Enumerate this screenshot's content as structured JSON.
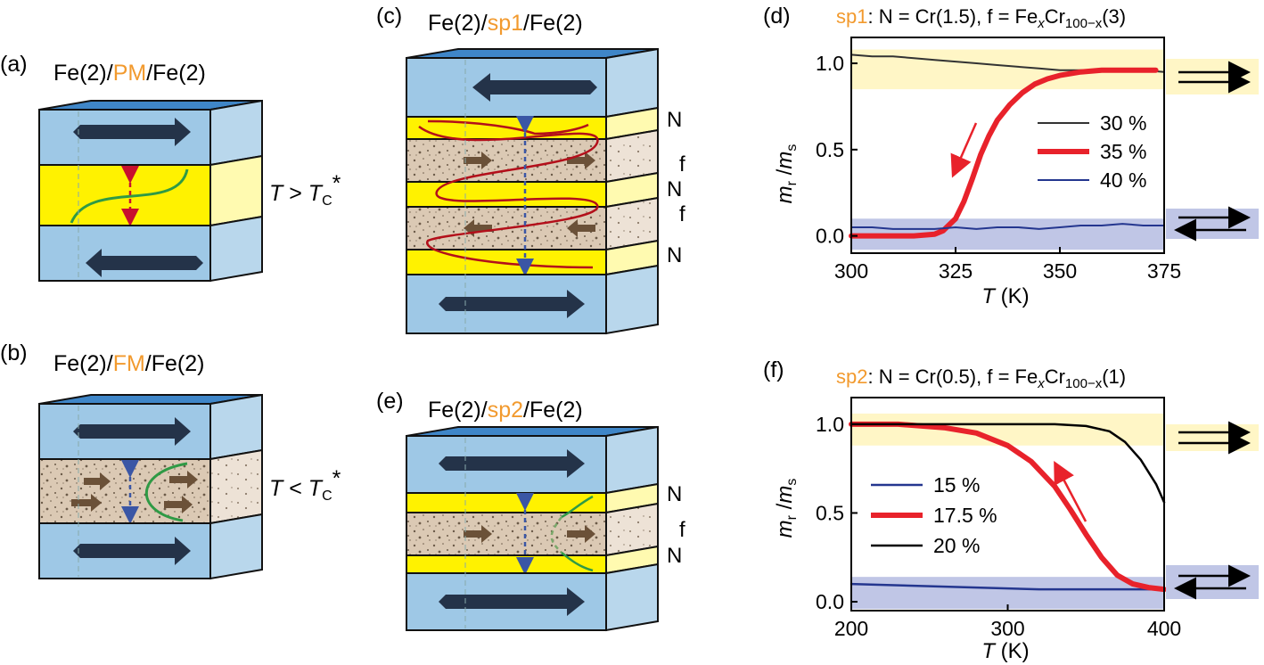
{
  "colors": {
    "fe_side": "#b9d7ec",
    "fe_face": "#9ec8e6",
    "fe_top": "#3f86c8",
    "nonmag": "#fff200",
    "ferro": "#dbc9b4",
    "arrow": "#243349",
    "accent": "#f29a2e",
    "red": "#e8222b",
    "grey": "#333333",
    "blue": "#24368f",
    "yellow_band": "#fff6c6",
    "blue_band": "#c0c6e6",
    "green": "#2f9a45"
  },
  "panels": {
    "a": {
      "label": "(a)",
      "title_pre": "Fe(2)/",
      "title_hl": "PM",
      "title_post": "/Fe(2)",
      "cond_var": "T",
      "cond_op": " > ",
      "cond_tc": "T",
      "cond_sub": "C",
      "cond_star": "*"
    },
    "b": {
      "label": "(b)",
      "title_pre": "Fe(2)/",
      "title_hl": "FM",
      "title_post": "/Fe(2)",
      "cond_var": "T",
      "cond_op": " < ",
      "cond_tc": "T",
      "cond_sub": "C",
      "cond_star": "*"
    },
    "c": {
      "label": "(c)",
      "title_pre": "Fe(2)/",
      "title_hl": "sp1",
      "title_post": "/Fe(2)",
      "layer_labels": [
        "N",
        "f",
        "N",
        "f",
        "N"
      ]
    },
    "e": {
      "label": "(e)",
      "title_pre": "Fe(2)/",
      "title_hl": "sp2",
      "title_post": "/Fe(2)",
      "layer_labels": [
        "N",
        "f",
        "N"
      ]
    }
  },
  "chart_data": [
    {
      "id": "d",
      "type": "line",
      "panel_label": "(d)",
      "title_hl": "sp1",
      "title_main": ": N = Cr(1.5), f = Fe",
      "title_x": "x",
      "title_cr": "Cr",
      "title_sub": "100−x",
      "title_end": "(3)",
      "ylabel_m": "m",
      "ylabel_r": "r",
      "ylabel_sep": " /",
      "ylabel_s": "s",
      "xlabel_var": "T",
      "xlabel_unit": " (K)",
      "xlim": [
        300,
        375
      ],
      "ylim": [
        -0.1,
        1.15
      ],
      "xticks": [
        300,
        325,
        350,
        375
      ],
      "xtick_labels": [
        "300",
        "325",
        "350",
        "375"
      ],
      "yticks": [
        0.0,
        0.5,
        1.0
      ],
      "ytick_labels": [
        "0.0",
        "0.5",
        "1.0"
      ],
      "bands": [
        {
          "from": 0.85,
          "to": 1.08,
          "color": "#fff6c6"
        },
        {
          "from": -0.08,
          "to": 0.1,
          "color": "#c0c6e6"
        }
      ],
      "legend_position": "center-right",
      "series": [
        {
          "name": "30 %",
          "color": "#333333",
          "width": 2,
          "x": [
            300,
            305,
            310,
            315,
            320,
            325,
            330,
            335,
            340,
            345,
            350,
            355,
            360,
            365,
            370,
            375
          ],
          "values": [
            1.05,
            1.04,
            1.04,
            1.03,
            1.02,
            1.01,
            1.0,
            0.99,
            0.98,
            0.97,
            0.96,
            0.96,
            0.96,
            0.96,
            0.96,
            0.95
          ]
        },
        {
          "name": "35 %",
          "color": "#e8222b",
          "width": 6,
          "x": [
            300,
            305,
            310,
            315,
            320,
            322,
            325,
            327,
            329,
            331,
            333,
            335,
            338,
            341,
            344,
            347,
            350,
            355,
            360,
            365,
            370,
            373
          ],
          "values": [
            0.0,
            0.0,
            0.0,
            0.0,
            0.01,
            0.03,
            0.1,
            0.2,
            0.33,
            0.47,
            0.58,
            0.67,
            0.76,
            0.83,
            0.88,
            0.91,
            0.93,
            0.95,
            0.96,
            0.96,
            0.96,
            0.96
          ]
        },
        {
          "name": "40 %",
          "color": "#24368f",
          "width": 2,
          "x": [
            300,
            305,
            310,
            315,
            320,
            325,
            330,
            335,
            340,
            345,
            350,
            355,
            360,
            365,
            370,
            375
          ],
          "values": [
            0.05,
            0.05,
            0.04,
            0.04,
            0.04,
            0.05,
            0.04,
            0.05,
            0.05,
            0.04,
            0.05,
            0.06,
            0.06,
            0.07,
            0.06,
            0.06
          ]
        }
      ],
      "annotation_arrow": "cooling arrow along 35 % curve"
    },
    {
      "id": "f",
      "type": "line",
      "panel_label": "(f)",
      "title_hl": "sp2",
      "title_main": ": N = Cr(0.5), f = Fe",
      "title_x": "x",
      "title_cr": "Cr",
      "title_sub": "100−x",
      "title_end": "(1)",
      "ylabel_m": "m",
      "ylabel_r": "r",
      "ylabel_sep": " /",
      "ylabel_s": "s",
      "xlabel_var": "T",
      "xlabel_unit": " (K)",
      "xlim": [
        200,
        400
      ],
      "ylim": [
        -0.05,
        1.15
      ],
      "xticks": [
        200,
        300,
        400
      ],
      "xtick_labels": [
        "200",
        "300",
        "400"
      ],
      "yticks": [
        0.0,
        0.5,
        1.0
      ],
      "ytick_labels": [
        "0.0",
        "0.5",
        "1.0"
      ],
      "bands": [
        {
          "from": 0.88,
          "to": 1.06,
          "color": "#fff6c6"
        },
        {
          "from": -0.04,
          "to": 0.14,
          "color": "#c0c6e6"
        }
      ],
      "legend_position": "left",
      "series": [
        {
          "name": "15 %",
          "color": "#24368f",
          "width": 2.5,
          "x": [
            200,
            240,
            280,
            320,
            360,
            400
          ],
          "values": [
            0.1,
            0.09,
            0.08,
            0.07,
            0.07,
            0.07
          ]
        },
        {
          "name": "17.5 %",
          "color": "#e8222b",
          "width": 6,
          "x": [
            200,
            230,
            260,
            280,
            300,
            315,
            330,
            340,
            350,
            360,
            370,
            380,
            390,
            400
          ],
          "values": [
            1.0,
            1.0,
            0.98,
            0.95,
            0.88,
            0.79,
            0.65,
            0.52,
            0.38,
            0.25,
            0.15,
            0.1,
            0.08,
            0.07
          ]
        },
        {
          "name": "20 %",
          "color": "#000000",
          "width": 2.5,
          "x": [
            200,
            250,
            300,
            330,
            350,
            365,
            375,
            385,
            395,
            400
          ],
          "values": [
            1.0,
            1.0,
            1.0,
            1.0,
            0.99,
            0.96,
            0.9,
            0.8,
            0.66,
            0.56
          ]
        }
      ],
      "annotation_arrow": "heating arrow along 17.5 % curve"
    }
  ]
}
